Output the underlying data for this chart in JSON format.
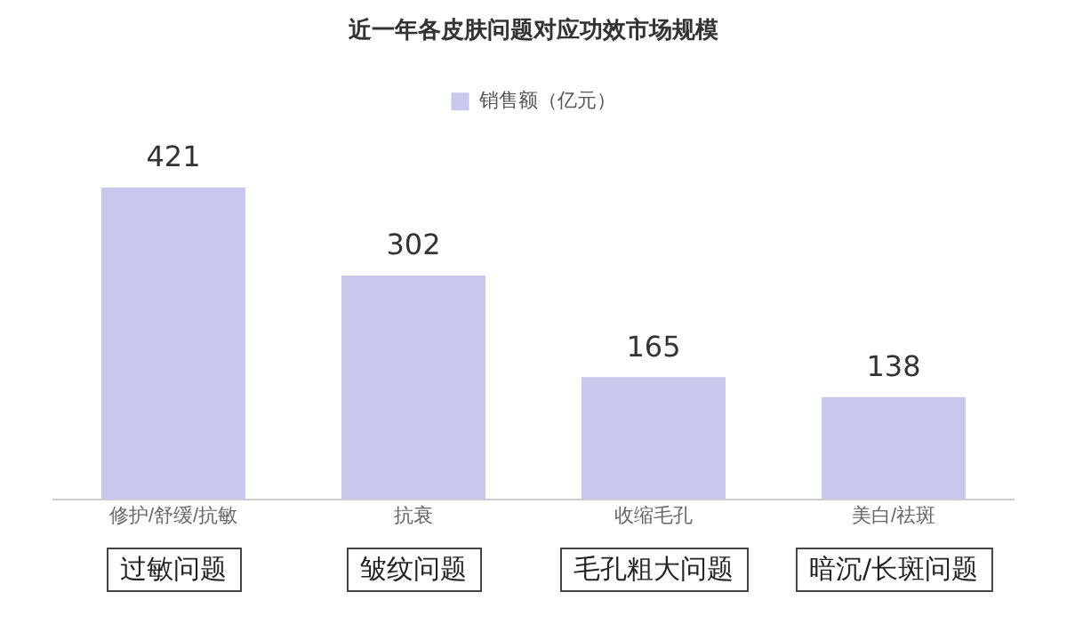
{
  "chart_data": {
    "type": "bar",
    "title": "近一年各皮肤问题对应功效市场规模",
    "categories": [
      "修护/舒缓/抗敏",
      "抗衰",
      "收缩毛孔",
      "美白/祛斑"
    ],
    "series": [
      {
        "name": "销售额（亿元）",
        "color": "#c9c7ec",
        "values": [
          421,
          302,
          165,
          138
        ]
      }
    ],
    "data_labels": true,
    "legend": "top",
    "grid": false,
    "tick_labels": "x",
    "annotations": [
      "过敏问题",
      "皱纹问题",
      "毛孔粗大问题",
      "暗沉/长斑问题"
    ]
  }
}
